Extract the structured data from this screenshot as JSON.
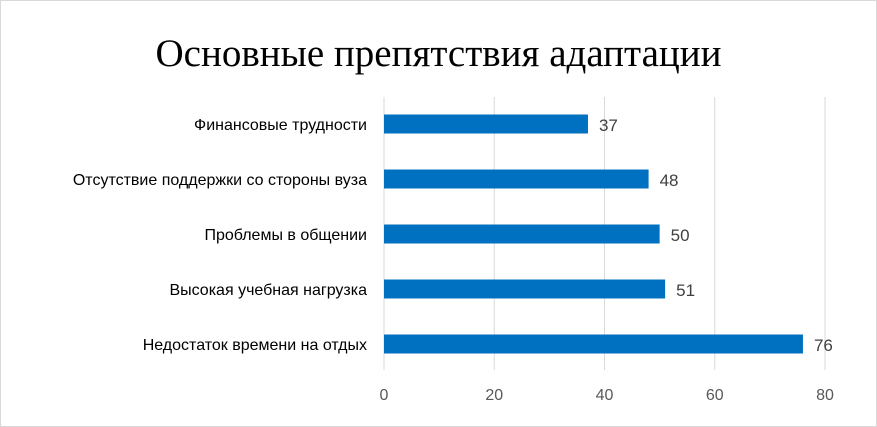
{
  "chart_data": {
    "type": "bar",
    "orientation": "horizontal",
    "title": "Основные препятствия адаптации",
    "categories": [
      "Финансовые трудности",
      "Отсутствие поддержки со стороны вуза",
      "Проблемы в общении",
      "Высокая учебная нагрузка",
      "Недостаток времени на отдых"
    ],
    "values": [
      37,
      48,
      50,
      51,
      76
    ],
    "xlim": [
      0,
      80
    ],
    "xticks": [
      0,
      20,
      40,
      60,
      80
    ],
    "grid": "vertical",
    "data_labels": true,
    "bar_color": "#0070C0",
    "grid_color": "#d9d9d9"
  }
}
